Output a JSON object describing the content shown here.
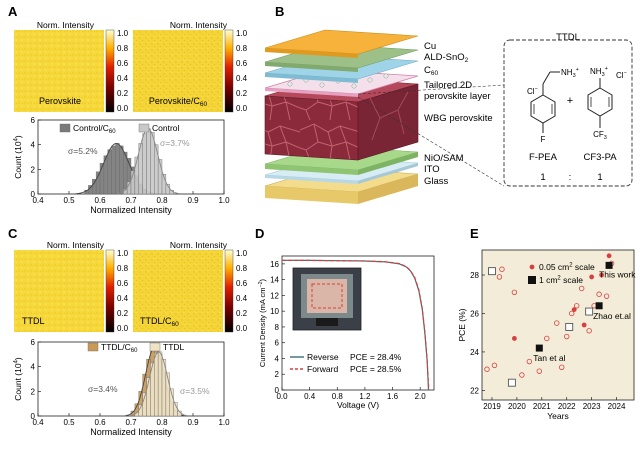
{
  "panels": {
    "A": {
      "letter": "A",
      "map_left": {
        "caption": "Perovskite",
        "cbar_title": "Norm. Intensity"
      },
      "map_right": {
        "caption": "Perovskite/C",
        "caption_sub": "60",
        "cbar_title": "Norm. Intensity"
      },
      "colorbar_ticks": [
        "1.0",
        "0.8",
        "0.6",
        "0.4",
        "0.2",
        "0.0"
      ]
    },
    "B": {
      "letter": "B",
      "layers": [
        "Cu",
        "ALD-SnO",
        "C",
        "Tailored 2D",
        "perovskite layer",
        "WBG perovskite",
        "NiO/SAM",
        "ITO",
        "Glass"
      ],
      "layer_subs": {
        "sno2": "2",
        "c60": "60"
      },
      "molecule_box": {
        "title": "TTDL",
        "mol1": {
          "name": "F-PEA",
          "ammonium": "NH",
          "ammonium_sub": "3",
          "ammonium_sup": "+",
          "halide": "Cl",
          "halide_sup": "−",
          "substituent": "F"
        },
        "mol2": {
          "name": "CF3-PA",
          "ammonium": "NH",
          "ammonium_sub": "3",
          "ammonium_sup": "+",
          "halide": "Cl",
          "halide_sup": "−",
          "substituent": "CF",
          "substituent_sub": "3"
        },
        "plus": "+",
        "ratio_left": "1",
        "ratio_sep": ":",
        "ratio_right": "1"
      }
    },
    "C": {
      "letter": "C",
      "map_left": {
        "caption": "TTDL",
        "cbar_title": "Norm. Intensity"
      },
      "map_right": {
        "caption": "TTDL/C",
        "caption_sub": "60",
        "cbar_title": "Norm. Intensity"
      },
      "colorbar_ticks": [
        "1.0",
        "0.8",
        "0.6",
        "0.4",
        "0.2",
        "0.0"
      ]
    },
    "D": {
      "letter": "D",
      "annot_reverse": "PCE = 28.4%",
      "annot_forward": "PCE = 28.5%"
    },
    "E": {
      "letter": "E"
    }
  },
  "chart_data": [
    {
      "id": "A-hist",
      "type": "histogram",
      "xlabel": "Normalized Intensity",
      "ylabel": "Count (10",
      "ylabel_sup": "4",
      "ylabel_end": ")",
      "xlim": [
        0.4,
        1.0
      ],
      "ylim": [
        0,
        6
      ],
      "xticks": [
        "0.4",
        "0.5",
        "0.6",
        "0.7",
        "0.8",
        "0.9",
        "1.0"
      ],
      "yticks": [
        "0",
        "2",
        "4",
        "6"
      ],
      "bin_width": 0.0125,
      "series": [
        {
          "name": "Control/C",
          "name_sub": "60",
          "color": "#7a7a7a",
          "sigma_label": "σ=5.2%",
          "bin_starts": [
            0.55,
            0.5625,
            0.575,
            0.5875,
            0.6,
            0.6125,
            0.625,
            0.6375,
            0.65,
            0.6625,
            0.675,
            0.6875,
            0.7,
            0.7125,
            0.725,
            0.7375
          ],
          "counts": [
            0.3,
            0.7,
            1.2,
            1.8,
            2.5,
            3.1,
            3.6,
            3.9,
            4.1,
            3.9,
            3.4,
            2.9,
            2.2,
            1.5,
            0.8,
            0.4
          ]
        },
        {
          "name": "Control",
          "color": "#c8c8c8",
          "sigma_label": "σ=3.7%",
          "bin_starts": [
            0.675,
            0.6875,
            0.7,
            0.7125,
            0.725,
            0.7375,
            0.75,
            0.7625,
            0.775,
            0.7875,
            0.8,
            0.8125,
            0.825
          ],
          "counts": [
            0.4,
            1.0,
            1.9,
            3.0,
            4.1,
            4.9,
            5.3,
            5.0,
            4.0,
            2.8,
            1.6,
            0.8,
            0.3
          ]
        }
      ]
    },
    {
      "id": "C-hist",
      "type": "histogram",
      "xlabel": "Normalized Intensity",
      "ylabel": "Count (10",
      "ylabel_sup": "4",
      "ylabel_end": ")",
      "xlim": [
        0.4,
        1.0
      ],
      "ylim": [
        0,
        6
      ],
      "xticks": [
        "0.4",
        "0.5",
        "0.6",
        "0.7",
        "0.8",
        "0.9",
        "1.0"
      ],
      "yticks": [
        "0",
        "2",
        "4",
        "6"
      ],
      "bin_width": 0.0125,
      "series": [
        {
          "name": "TTDL/C",
          "name_sub": "60",
          "color": "#c99a55",
          "sigma_label": "σ=3.4%",
          "bin_starts": [
            0.7,
            0.7125,
            0.725,
            0.7375,
            0.75,
            0.7625,
            0.775,
            0.7875,
            0.8,
            0.8125,
            0.825,
            0.8375
          ],
          "counts": [
            0.4,
            1.0,
            2.0,
            3.4,
            4.6,
            5.4,
            5.6,
            5.0,
            3.8,
            2.4,
            1.2,
            0.5
          ]
        },
        {
          "name": "TTDL",
          "color": "#efe3c6",
          "sigma_label": "σ=3.5%",
          "bin_starts": [
            0.7125,
            0.725,
            0.7375,
            0.75,
            0.7625,
            0.775,
            0.7875,
            0.8,
            0.8125,
            0.825,
            0.8375,
            0.85
          ],
          "counts": [
            0.3,
            0.9,
            1.9,
            3.1,
            4.3,
            5.1,
            5.2,
            4.6,
            3.5,
            2.2,
            1.1,
            0.4
          ]
        }
      ]
    },
    {
      "id": "D-jv",
      "type": "line",
      "xlabel": "Voltage (V)",
      "ylabel": "Current Density (mA cm",
      "ylabel_sup": "−2",
      "ylabel_end": ")",
      "xlim": [
        0,
        2.2
      ],
      "ylim": [
        0,
        17
      ],
      "xticks": [
        "0.0",
        "0.4",
        "0.8",
        "1.2",
        "1.6",
        "2.0"
      ],
      "yticks": [
        "0",
        "2",
        "4",
        "6",
        "8",
        "10",
        "12",
        "14",
        "16"
      ],
      "series": [
        {
          "name": "Reverse",
          "color": "#3a6f74",
          "dash": false,
          "x": [
            0,
            0.4,
            0.8,
            1.2,
            1.5,
            1.7,
            1.8,
            1.86,
            1.92,
            1.98,
            2.03,
            2.07,
            2.1,
            2.12
          ],
          "y": [
            16.45,
            16.44,
            16.41,
            16.36,
            16.25,
            16.0,
            15.6,
            15.1,
            14.2,
            12.6,
            10.2,
            7.0,
            3.8,
            0
          ]
        },
        {
          "name": "Forward",
          "color": "#d64040",
          "dash": true,
          "x": [
            0,
            0.4,
            0.8,
            1.2,
            1.5,
            1.7,
            1.8,
            1.86,
            1.92,
            1.98,
            2.03,
            2.07,
            2.1,
            2.125
          ],
          "y": [
            16.45,
            16.44,
            16.41,
            16.37,
            16.27,
            16.03,
            15.65,
            15.15,
            14.3,
            12.75,
            10.35,
            7.2,
            3.9,
            0
          ]
        }
      ]
    },
    {
      "id": "E-pce",
      "type": "scatter",
      "xlabel": "Years",
      "ylabel": "PCE (%)",
      "xlim": [
        2018.6,
        2024.7
      ],
      "ylim": [
        21.5,
        29.3
      ],
      "xticks": [
        "2019",
        "2020",
        "2021",
        "2022",
        "2023",
        "2024"
      ],
      "yticks": [
        "22",
        "24",
        "26",
        "28"
      ],
      "legend": [
        {
          "label": "0.05 cm",
          "label_sup": "2",
          "label_end": " scale",
          "marker": "red-dot"
        },
        {
          "label": "1 cm",
          "label_sup": "2",
          "label_end": "   scale",
          "marker": "black-square"
        }
      ],
      "series": [
        {
          "name": "0.05 cm2 open",
          "marker": "open-circle",
          "color": "#d64040",
          "x": [
            2018.8,
            2019.1,
            2019.3,
            2019.4,
            2019.9,
            2020.2,
            2020.5,
            2020.9,
            2021.2,
            2021.6,
            2021.8,
            2022.0,
            2022.2,
            2022.4,
            2022.6,
            2022.9,
            2023.1,
            2023.3,
            2023.6,
            2023.8
          ],
          "y": [
            23.1,
            23.3,
            27.9,
            28.3,
            27.1,
            22.8,
            23.5,
            23.0,
            24.7,
            25.5,
            23.2,
            24.8,
            26.0,
            26.4,
            27.3,
            25.1,
            26.4,
            27.0,
            26.9,
            28.6
          ]
        },
        {
          "name": "0.05 cm2 filled",
          "marker": "filled-circle",
          "color": "#d64040",
          "x": [
            2019.9,
            2022.3,
            2022.7,
            2023.0,
            2023.4,
            2023.7
          ],
          "y": [
            24.7,
            26.2,
            25.4,
            27.9,
            28.0,
            29.0
          ]
        },
        {
          "name": "1 cm2 open",
          "marker": "open-square",
          "color": "#555555",
          "x": [
            2019.0,
            2019.8,
            2022.1,
            2022.9
          ],
          "y": [
            28.2,
            22.4,
            25.3,
            26.1
          ]
        },
        {
          "name": "1 cm2 filled",
          "marker": "filled-square",
          "color": "#111111",
          "x": [
            2020.9,
            2023.3,
            2023.7
          ],
          "y": [
            24.2,
            26.4,
            28.5
          ]
        }
      ],
      "annotations": [
        {
          "text": "This work",
          "x": 2023.7,
          "y": 28.5
        },
        {
          "text": "Zhao et.al",
          "x": 2023.3,
          "y": 26.4
        },
        {
          "text": "Tan et al",
          "x": 2020.9,
          "y": 24.2
        }
      ]
    }
  ]
}
